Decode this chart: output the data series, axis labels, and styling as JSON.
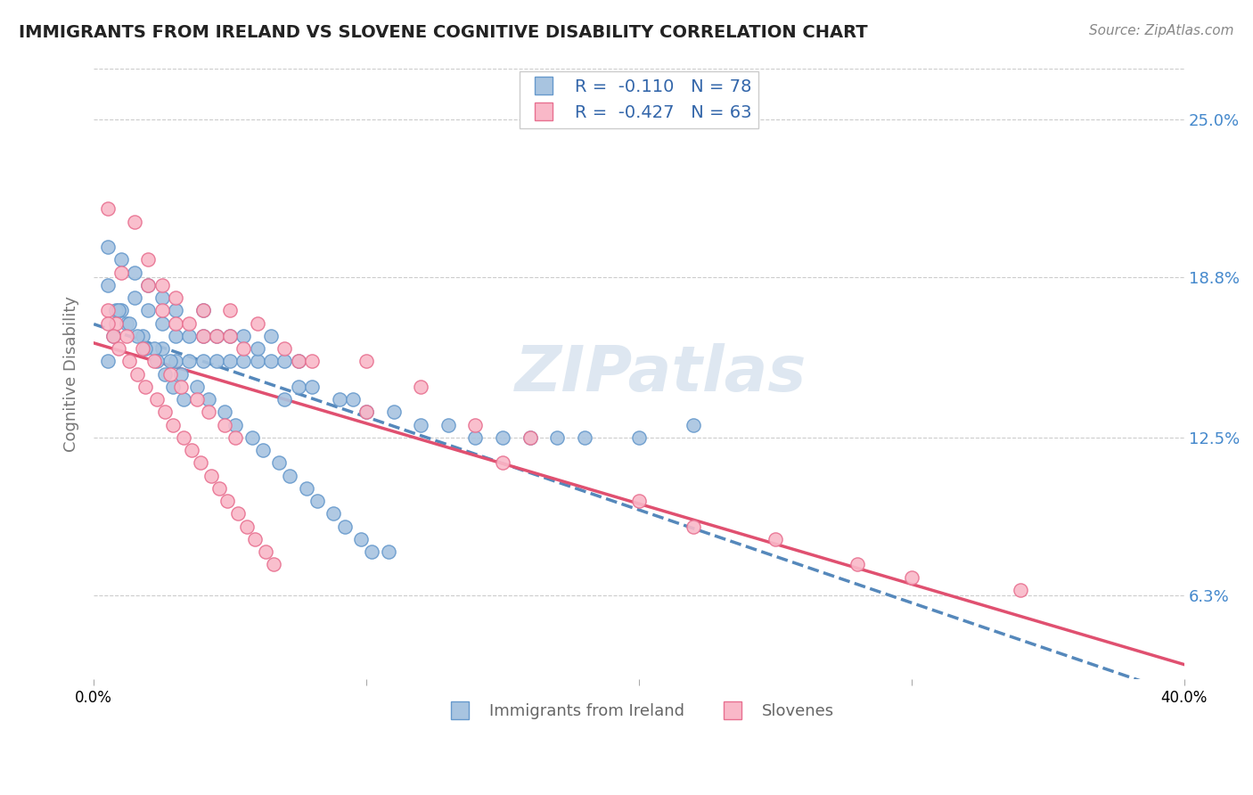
{
  "title": "IMMIGRANTS FROM IRELAND VS SLOVENE COGNITIVE DISABILITY CORRELATION CHART",
  "source": "Source: ZipAtlas.com",
  "ylabel": "Cognitive Disability",
  "y_ticks": [
    0.063,
    0.125,
    0.188,
    0.25
  ],
  "y_tick_labels": [
    "6.3%",
    "12.5%",
    "18.8%",
    "25.0%"
  ],
  "xlim": [
    0.0,
    0.4
  ],
  "ylim": [
    0.03,
    0.27
  ],
  "series1_label": "Immigrants from Ireland",
  "series1_color": "#a8c4e0",
  "series1_edge_color": "#6699cc",
  "series1_R": -0.11,
  "series1_N": 78,
  "series2_label": "Slovenes",
  "series2_color": "#f9b8c8",
  "series2_edge_color": "#e87090",
  "series2_R": -0.427,
  "series2_N": 63,
  "trend1_color": "#5588bb",
  "trend2_color": "#e05070",
  "background_color": "#ffffff",
  "grid_color": "#cccccc",
  "title_color": "#222222",
  "legend_color": "#3366aa",
  "watermark": "ZIPatlas",
  "watermark_color": "#c8d8e8",
  "right_tick_color": "#4488cc",
  "series1_x": [
    0.005,
    0.01,
    0.01,
    0.015,
    0.015,
    0.02,
    0.02,
    0.025,
    0.025,
    0.025,
    0.03,
    0.03,
    0.03,
    0.035,
    0.035,
    0.04,
    0.04,
    0.04,
    0.045,
    0.045,
    0.05,
    0.05,
    0.055,
    0.055,
    0.06,
    0.06,
    0.065,
    0.065,
    0.07,
    0.07,
    0.075,
    0.075,
    0.08,
    0.09,
    0.095,
    0.1,
    0.11,
    0.12,
    0.13,
    0.14,
    0.15,
    0.16,
    0.17,
    0.18,
    0.2,
    0.22,
    0.005,
    0.008,
    0.012,
    0.018,
    0.022,
    0.028,
    0.032,
    0.038,
    0.042,
    0.048,
    0.052,
    0.058,
    0.062,
    0.068,
    0.072,
    0.078,
    0.082,
    0.088,
    0.092,
    0.098,
    0.102,
    0.108,
    0.005,
    0.007,
    0.009,
    0.013,
    0.016,
    0.019,
    0.023,
    0.026,
    0.029,
    0.033
  ],
  "series1_y": [
    0.2,
    0.175,
    0.195,
    0.18,
    0.19,
    0.175,
    0.185,
    0.16,
    0.17,
    0.18,
    0.155,
    0.165,
    0.175,
    0.155,
    0.165,
    0.155,
    0.165,
    0.175,
    0.155,
    0.165,
    0.155,
    0.165,
    0.155,
    0.165,
    0.155,
    0.16,
    0.155,
    0.165,
    0.14,
    0.155,
    0.145,
    0.155,
    0.145,
    0.14,
    0.14,
    0.135,
    0.135,
    0.13,
    0.13,
    0.125,
    0.125,
    0.125,
    0.125,
    0.125,
    0.125,
    0.13,
    0.185,
    0.175,
    0.17,
    0.165,
    0.16,
    0.155,
    0.15,
    0.145,
    0.14,
    0.135,
    0.13,
    0.125,
    0.12,
    0.115,
    0.11,
    0.105,
    0.1,
    0.095,
    0.09,
    0.085,
    0.08,
    0.08,
    0.155,
    0.165,
    0.175,
    0.17,
    0.165,
    0.16,
    0.155,
    0.15,
    0.145,
    0.14
  ],
  "series2_x": [
    0.005,
    0.01,
    0.015,
    0.02,
    0.02,
    0.025,
    0.025,
    0.03,
    0.03,
    0.035,
    0.04,
    0.04,
    0.045,
    0.05,
    0.05,
    0.055,
    0.06,
    0.07,
    0.075,
    0.08,
    0.1,
    0.12,
    0.14,
    0.16,
    0.005,
    0.008,
    0.012,
    0.018,
    0.022,
    0.028,
    0.032,
    0.038,
    0.042,
    0.048,
    0.052,
    0.22,
    0.28,
    0.34,
    0.005,
    0.007,
    0.009,
    0.013,
    0.016,
    0.019,
    0.023,
    0.026,
    0.029,
    0.033,
    0.036,
    0.039,
    0.043,
    0.046,
    0.049,
    0.053,
    0.056,
    0.059,
    0.063,
    0.066,
    0.1,
    0.15,
    0.2,
    0.25,
    0.3
  ],
  "series2_y": [
    0.215,
    0.19,
    0.21,
    0.185,
    0.195,
    0.175,
    0.185,
    0.17,
    0.18,
    0.17,
    0.165,
    0.175,
    0.165,
    0.165,
    0.175,
    0.16,
    0.17,
    0.16,
    0.155,
    0.155,
    0.155,
    0.145,
    0.13,
    0.125,
    0.175,
    0.17,
    0.165,
    0.16,
    0.155,
    0.15,
    0.145,
    0.14,
    0.135,
    0.13,
    0.125,
    0.09,
    0.075,
    0.065,
    0.17,
    0.165,
    0.16,
    0.155,
    0.15,
    0.145,
    0.14,
    0.135,
    0.13,
    0.125,
    0.12,
    0.115,
    0.11,
    0.105,
    0.1,
    0.095,
    0.09,
    0.085,
    0.08,
    0.075,
    0.135,
    0.115,
    0.1,
    0.085,
    0.07
  ]
}
